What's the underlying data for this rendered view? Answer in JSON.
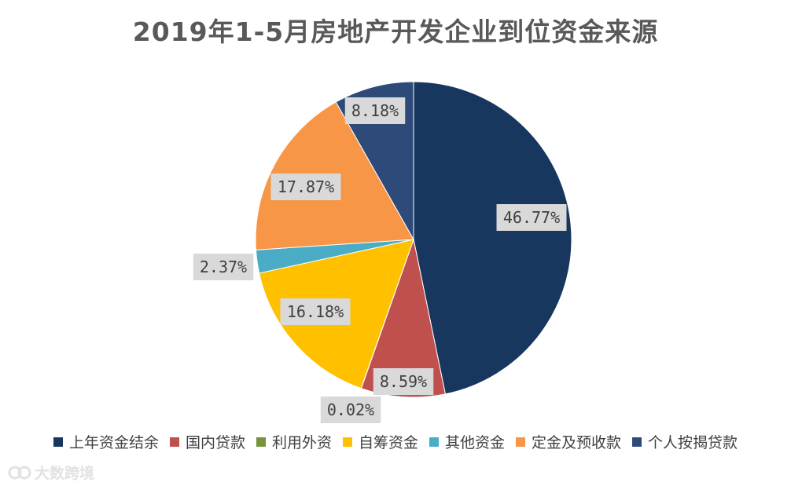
{
  "chart_data": {
    "type": "pie",
    "title": "2019年1-5月房地产开发企业到位资金来源",
    "categories": [
      "上年资金结余",
      "国内贷款",
      "利用外资",
      "自筹资金",
      "其他资金",
      "定金及预收款",
      "个人按揭贷款"
    ],
    "values": [
      46.77,
      8.59,
      0.02,
      16.18,
      2.37,
      17.87,
      8.18
    ],
    "labels": [
      "46.77%",
      "8.59%",
      "0.02%",
      "16.18%",
      "2.37%",
      "17.87%",
      "8.18%"
    ],
    "colors": [
      "#17375e",
      "#c0504d",
      "#77933c",
      "#ffc000",
      "#4bacc6",
      "#f79646",
      "#2e4a78"
    ],
    "legend_position": "bottom",
    "start": "12 o'clock",
    "direction": "clockwise"
  },
  "watermark": {
    "icon": "logo-icon",
    "text": "大数跨境"
  }
}
